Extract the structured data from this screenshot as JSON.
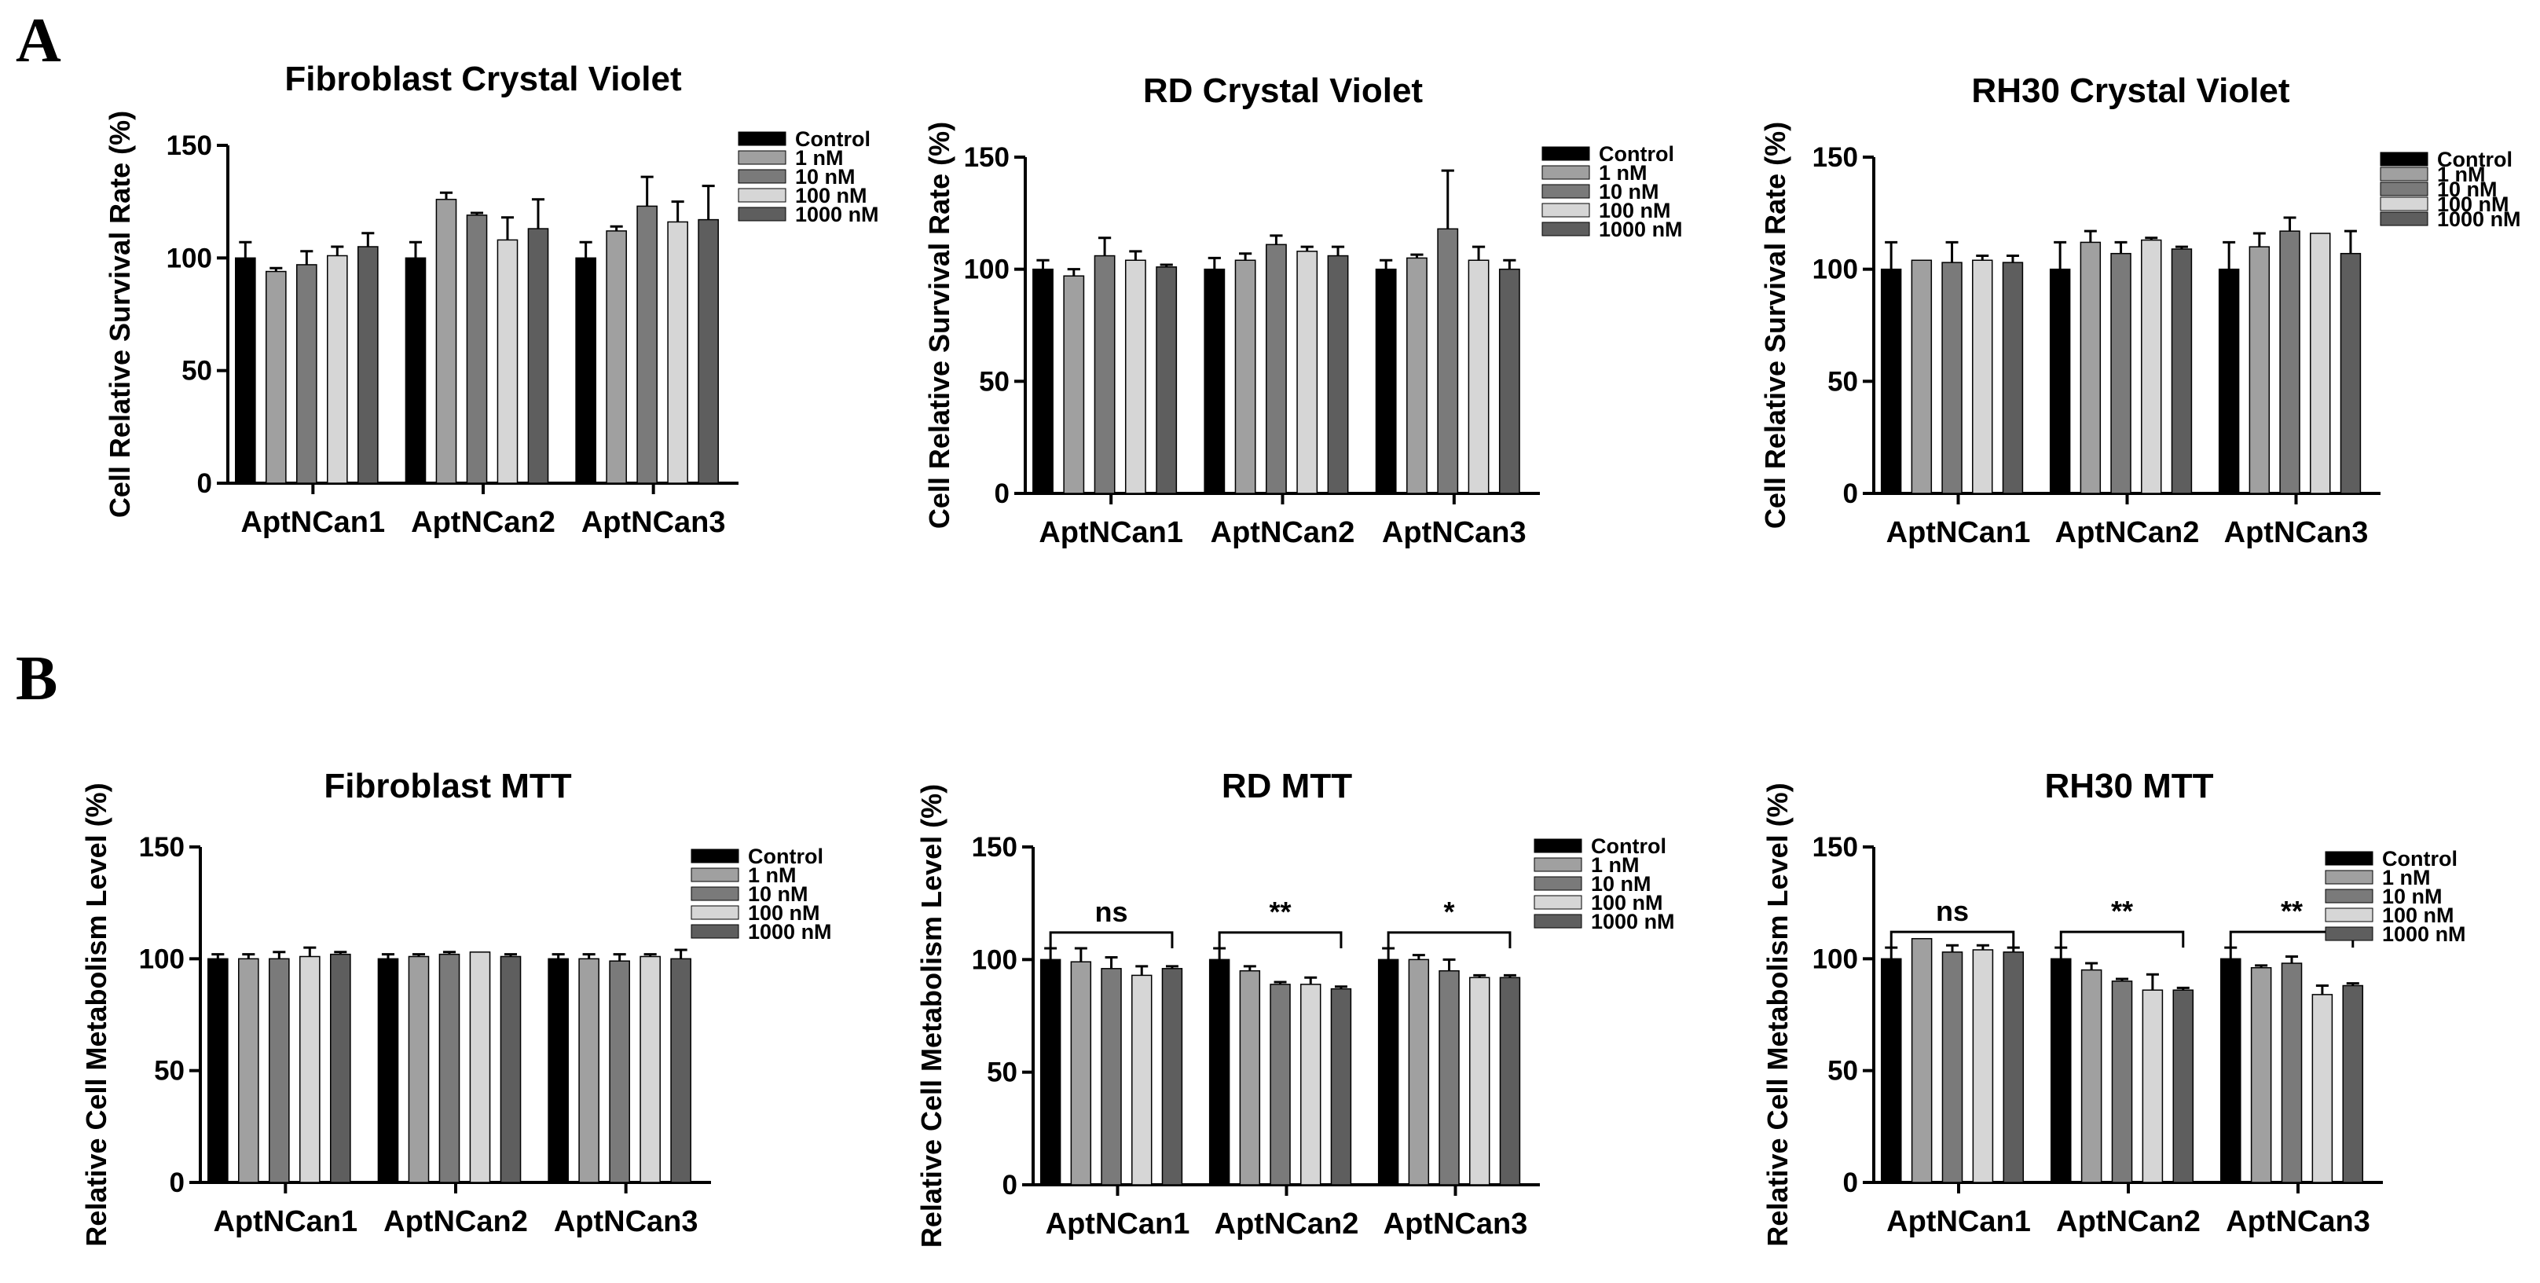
{
  "panels": [
    {
      "letter": "A"
    },
    {
      "letter": "B"
    }
  ],
  "chart_data": [
    {
      "type": "bar",
      "title": "Fibroblast  Crystal Violet",
      "ylabel": "Cell Relative Survival Rate (%)",
      "xlabel": "",
      "ylim": [
        0,
        150
      ],
      "yticks": [
        0,
        50,
        100,
        150
      ],
      "grid": false,
      "legend_position": "top-right",
      "categories": [
        "AptNCan1",
        "AptNCan2",
        "AptNCan3"
      ],
      "series": [
        {
          "name": "Control",
          "color": "#000000",
          "values": [
            100,
            100,
            100
          ],
          "errors": [
            7,
            7,
            7
          ]
        },
        {
          "name": "1 nM",
          "color": "#a0a0a0",
          "values": [
            94,
            126,
            112
          ],
          "errors": [
            1.5,
            3,
            2
          ]
        },
        {
          "name": "10 nM",
          "color": "#7a7a7a",
          "values": [
            97,
            119,
            123
          ],
          "errors": [
            6,
            1,
            13
          ]
        },
        {
          "name": "100 nM",
          "color": "#d6d6d6",
          "values": [
            101,
            108,
            116
          ],
          "errors": [
            4,
            10,
            9
          ]
        },
        {
          "name": "1000 nM",
          "color": "#5e5e5e",
          "values": [
            105,
            113,
            117
          ],
          "errors": [
            6,
            13,
            15
          ]
        }
      ],
      "significance": []
    },
    {
      "type": "bar",
      "title": "RD  Crystal Violet",
      "ylabel": "Cell Relative Survival Rate (%)",
      "xlabel": "",
      "ylim": [
        0,
        150
      ],
      "yticks": [
        0,
        50,
        100,
        150
      ],
      "grid": false,
      "legend_position": "top-right",
      "categories": [
        "AptNCan1",
        "AptNCan2",
        "AptNCan3"
      ],
      "series": [
        {
          "name": "Control",
          "color": "#000000",
          "values": [
            100,
            100,
            100
          ],
          "errors": [
            4,
            5,
            4
          ]
        },
        {
          "name": "1 nM",
          "color": "#a0a0a0",
          "values": [
            97,
            104,
            105
          ],
          "errors": [
            3,
            3,
            1.5
          ]
        },
        {
          "name": "10 nM",
          "color": "#7a7a7a",
          "values": [
            106,
            111,
            118
          ],
          "errors": [
            8,
            4,
            26
          ]
        },
        {
          "name": "100 nM",
          "color": "#d6d6d6",
          "values": [
            104,
            108,
            104
          ],
          "errors": [
            4,
            2,
            6
          ]
        },
        {
          "name": "1000 nM",
          "color": "#5e5e5e",
          "values": [
            101,
            106,
            100
          ],
          "errors": [
            1,
            4,
            4
          ]
        }
      ],
      "significance": []
    },
    {
      "type": "bar",
      "title": "RH30  Crystal Violet",
      "ylabel": "Cell Relative Survival Rate (%)",
      "xlabel": "",
      "ylim": [
        0,
        150
      ],
      "yticks": [
        0,
        50,
        100,
        150
      ],
      "grid": false,
      "legend_position": "top-right",
      "categories": [
        "AptNCan1",
        "AptNCan2",
        "AptNCan3"
      ],
      "series": [
        {
          "name": "Control",
          "color": "#000000",
          "values": [
            100,
            100,
            100
          ],
          "errors": [
            12,
            12,
            12
          ]
        },
        {
          "name": "1 nM",
          "color": "#a0a0a0",
          "values": [
            104,
            112,
            110
          ],
          "errors": [
            0,
            5,
            6
          ]
        },
        {
          "name": "10 nM",
          "color": "#7a7a7a",
          "values": [
            103,
            107,
            117
          ],
          "errors": [
            9,
            5,
            6
          ]
        },
        {
          "name": "100 nM",
          "color": "#d6d6d6",
          "values": [
            104,
            113,
            116
          ],
          "errors": [
            2,
            1,
            0
          ]
        },
        {
          "name": "1000 nM",
          "color": "#5e5e5e",
          "values": [
            103,
            109,
            107
          ],
          "errors": [
            3,
            1,
            10
          ]
        }
      ],
      "significance": []
    },
    {
      "type": "bar",
      "title": "Fibroblast  MTT",
      "ylabel": "Relative Cell Metabolism Level (%)",
      "xlabel": "",
      "ylim": [
        0,
        150
      ],
      "yticks": [
        0,
        50,
        100,
        150
      ],
      "grid": false,
      "legend_position": "top-right",
      "categories": [
        "AptNCan1",
        "AptNCan2",
        "AptNCan3"
      ],
      "series": [
        {
          "name": "Control",
          "color": "#000000",
          "values": [
            100,
            100,
            100
          ],
          "errors": [
            2,
            2,
            2
          ]
        },
        {
          "name": "1 nM",
          "color": "#a0a0a0",
          "values": [
            100,
            101,
            100
          ],
          "errors": [
            2,
            1,
            2
          ]
        },
        {
          "name": "10 nM",
          "color": "#7a7a7a",
          "values": [
            100,
            102,
            99
          ],
          "errors": [
            3,
            1,
            3
          ]
        },
        {
          "name": "100 nM",
          "color": "#d6d6d6",
          "values": [
            101,
            103,
            101
          ],
          "errors": [
            4,
            0,
            1
          ]
        },
        {
          "name": "1000 nM",
          "color": "#5e5e5e",
          "values": [
            102,
            101,
            100
          ],
          "errors": [
            1,
            1,
            4
          ]
        }
      ],
      "significance": []
    },
    {
      "type": "bar",
      "title": "RD  MTT",
      "ylabel": "Relative Cell Metabolism Level (%)",
      "xlabel": "",
      "ylim": [
        0,
        150
      ],
      "yticks": [
        0,
        50,
        100,
        150
      ],
      "grid": false,
      "legend_position": "top-right",
      "categories": [
        "AptNCan1",
        "AptNCan2",
        "AptNCan3"
      ],
      "series": [
        {
          "name": "Control",
          "color": "#000000",
          "values": [
            100,
            100,
            100
          ],
          "errors": [
            5,
            5,
            5
          ]
        },
        {
          "name": "1 nM",
          "color": "#a0a0a0",
          "values": [
            99,
            95,
            100
          ],
          "errors": [
            6,
            2,
            2
          ]
        },
        {
          "name": "10 nM",
          "color": "#7a7a7a",
          "values": [
            96,
            89,
            95
          ],
          "errors": [
            5,
            1,
            5
          ]
        },
        {
          "name": "100 nM",
          "color": "#d6d6d6",
          "values": [
            93,
            89,
            92
          ],
          "errors": [
            4,
            3,
            1
          ]
        },
        {
          "name": "1000 nM",
          "color": "#5e5e5e",
          "values": [
            96,
            87,
            92
          ],
          "errors": [
            1,
            1,
            1
          ]
        }
      ],
      "significance": [
        {
          "label": "ns",
          "bracket_y": 112
        },
        {
          "label": "**",
          "bracket_y": 112
        },
        {
          "label": "*",
          "bracket_y": 112
        }
      ]
    },
    {
      "type": "bar",
      "title": "RH30  MTT",
      "ylabel": "Relative Cell Metabolism Level (%)",
      "xlabel": "",
      "ylim": [
        0,
        150
      ],
      "yticks": [
        0,
        50,
        100,
        150
      ],
      "grid": false,
      "legend_position": "top-right",
      "categories": [
        "AptNCan1",
        "AptNCan2",
        "AptNCan3"
      ],
      "series": [
        {
          "name": "Control",
          "color": "#000000",
          "values": [
            100,
            100,
            100
          ],
          "errors": [
            5,
            5,
            5
          ]
        },
        {
          "name": "1 nM",
          "color": "#a0a0a0",
          "values": [
            109,
            95,
            96
          ],
          "errors": [
            0,
            3,
            1
          ]
        },
        {
          "name": "10 nM",
          "color": "#7a7a7a",
          "values": [
            103,
            90,
            98
          ],
          "errors": [
            3,
            1,
            3
          ]
        },
        {
          "name": "100 nM",
          "color": "#d6d6d6",
          "values": [
            104,
            86,
            84
          ],
          "errors": [
            2,
            7,
            4
          ]
        },
        {
          "name": "1000 nM",
          "color": "#5e5e5e",
          "values": [
            103,
            86,
            88
          ],
          "errors": [
            2,
            1,
            1
          ]
        }
      ],
      "significance": [
        {
          "label": "ns",
          "bracket_y": 112
        },
        {
          "label": "**",
          "bracket_y": 112
        },
        {
          "label": "**",
          "bracket_y": 112
        }
      ]
    }
  ]
}
